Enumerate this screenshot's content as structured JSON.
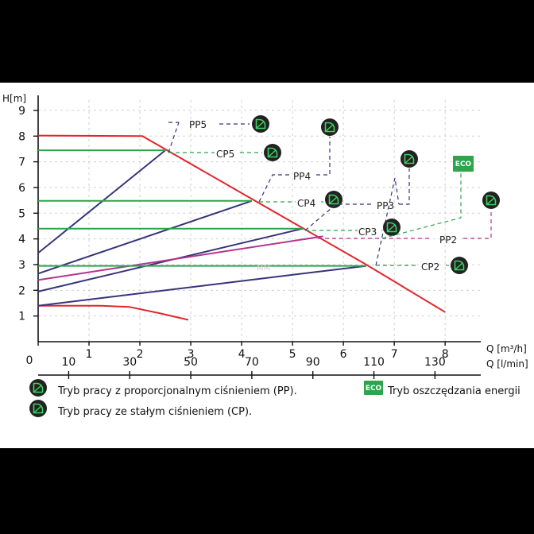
{
  "chart_data": {
    "type": "line",
    "ylabel": "H[m]",
    "xlabel": "Q [m³/h]",
    "xlabel_secondary": "Q [l/min]",
    "origin_label": "0",
    "x_ticks": [
      0,
      1,
      2,
      3,
      4,
      5,
      6,
      7,
      8
    ],
    "y_ticks": [
      1,
      2,
      3,
      4,
      5,
      6,
      7,
      8,
      9
    ],
    "secondary_ticks": [
      10,
      30,
      50,
      70,
      90,
      110,
      130
    ],
    "xlim": [
      0,
      8.7
    ],
    "ylim": [
      0,
      9.4
    ],
    "grid": true,
    "series": [
      {
        "color": "#e3262b",
        "points": [
          [
            0,
            8.02
          ],
          [
            2.05,
            8.0
          ],
          [
            6.45,
            3.0
          ],
          [
            8.0,
            1.15
          ]
        ]
      },
      {
        "color": "#e3262b",
        "points": [
          [
            0,
            1.4
          ],
          [
            1.2,
            1.4
          ],
          [
            1.8,
            1.35
          ],
          [
            2.4,
            1.1
          ],
          [
            2.95,
            0.85
          ]
        ]
      },
      {
        "color": "#35347a",
        "points": [
          [
            0,
            3.45
          ],
          [
            2.5,
            7.45
          ]
        ]
      },
      {
        "color": "#35347a",
        "points": [
          [
            0,
            2.65
          ],
          [
            4.2,
            5.48
          ]
        ]
      },
      {
        "color": "#35347a",
        "points": [
          [
            0,
            1.95
          ],
          [
            5.2,
            4.4
          ]
        ]
      },
      {
        "color": "#35347a",
        "points": [
          [
            0,
            1.4
          ],
          [
            6.45,
            2.95
          ]
        ]
      },
      {
        "color": "#b4348f",
        "points": [
          [
            0,
            2.4
          ],
          [
            5.6,
            4.1
          ]
        ]
      },
      {
        "color": "#2ea44b",
        "points": [
          [
            0,
            7.45
          ],
          [
            2.5,
            7.45
          ]
        ]
      },
      {
        "color": "#2ea44b",
        "points": [
          [
            0,
            5.48
          ],
          [
            4.2,
            5.48
          ]
        ]
      },
      {
        "color": "#2ea44b",
        "points": [
          [
            0,
            4.4
          ],
          [
            5.2,
            4.4
          ]
        ]
      },
      {
        "color": "#2ea44b",
        "points": [
          [
            0,
            2.95
          ],
          [
            6.45,
            2.95
          ]
        ]
      }
    ],
    "annotations": [
      {
        "label": "PP5",
        "icon": "pump-mode-icon",
        "color": "#35347a"
      },
      {
        "label": "CP5",
        "icon": "pump-mode-icon",
        "color": "#2ea44b"
      },
      {
        "label": "PP4",
        "icon": "pump-mode-icon",
        "color": "#35347a"
      },
      {
        "label": "CP4",
        "icon": "pump-mode-icon",
        "color": "#2ea44b"
      },
      {
        "label": "PP3",
        "icon": "pump-mode-icon",
        "color": "#35347a"
      },
      {
        "label": "CP3",
        "icon": "pump-mode-icon",
        "color": "#2ea44b"
      },
      {
        "label": "PP2",
        "icon": "pump-mode-icon",
        "color": "#b4348f"
      },
      {
        "label": "CP2",
        "icon": "pump-mode-icon",
        "color": "#2ea44b"
      },
      {
        "label": "ECO",
        "icon": "eco-badge-icon",
        "color": "#2ea44b"
      }
    ],
    "legend": [
      {
        "icon": "pump-mode-icon",
        "text": "Tryb pracy z proporcjonalnym ciśnieniem (PP)."
      },
      {
        "icon": "pump-mode-icon",
        "text": "Tryb pracy ze stałym ciśnieniem (CP)."
      },
      {
        "icon": "eco-badge-icon",
        "badge": "ECO",
        "text": "Tryb oszczędzania energii"
      }
    ],
    "watermark": "MM"
  }
}
